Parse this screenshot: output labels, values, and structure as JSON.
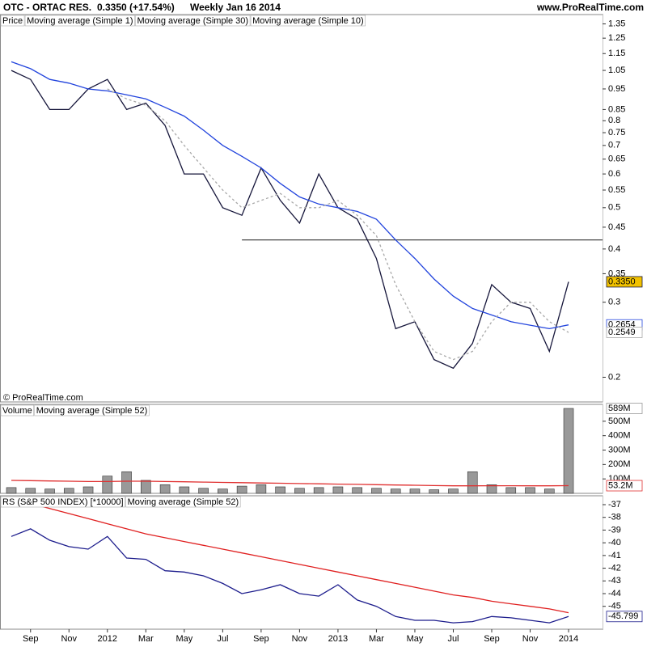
{
  "chart_data": [
    {
      "type": "line",
      "title": "OTC - ORTAC RES.",
      "subtitle": "0.3350 (+17.54%)",
      "period": "Weekly  Jan 16 2014",
      "source": "www.ProRealTime.com",
      "watermark": "© ProRealTime.com",
      "label": "Price",
      "log_scale": true,
      "ylim": [
        0.175,
        1.42
      ],
      "yticks": [
        1.35,
        1.25,
        1.15,
        1.05,
        0.95,
        0.85,
        0.8,
        0.75,
        0.7,
        0.65,
        0.6,
        0.55,
        0.5,
        0.45,
        0.4,
        0.35,
        0.3,
        0.2
      ],
      "hline": 0.42,
      "series": [
        {
          "name": "Moving average (Simple 1)",
          "color": "#15153a",
          "label_fill": "#f2c200",
          "values": [
            1.05,
            1.0,
            0.85,
            0.85,
            0.95,
            1.0,
            0.85,
            0.88,
            0.78,
            0.6,
            0.6,
            0.5,
            0.48,
            0.62,
            0.52,
            0.46,
            0.6,
            0.5,
            0.47,
            0.38,
            0.26,
            0.27,
            0.22,
            0.21,
            0.24,
            0.33,
            0.3,
            0.29,
            0.23,
            0.335
          ],
          "value_labels": [
            null,
            null,
            null,
            null,
            null,
            null,
            null,
            null,
            null,
            null,
            null,
            null,
            null,
            null,
            null,
            null,
            null,
            null,
            null,
            null,
            null,
            null,
            null,
            null,
            null,
            null,
            null,
            null,
            null,
            "0.3350"
          ]
        },
        {
          "name": "Moving average (Simple 30)",
          "color": "#2244dd",
          "values": [
            1.1,
            1.06,
            1.0,
            0.98,
            0.95,
            0.94,
            0.92,
            0.9,
            0.86,
            0.82,
            0.76,
            0.7,
            0.66,
            0.62,
            0.57,
            0.53,
            0.51,
            0.5,
            0.49,
            0.47,
            0.42,
            0.38,
            0.34,
            0.31,
            0.29,
            0.28,
            0.27,
            0.265,
            0.26,
            0.2654
          ],
          "value_labels": [
            null,
            null,
            null,
            null,
            null,
            null,
            null,
            null,
            null,
            null,
            null,
            null,
            null,
            null,
            null,
            null,
            null,
            null,
            null,
            null,
            null,
            null,
            null,
            null,
            null,
            null,
            null,
            null,
            null,
            "0.2654"
          ]
        },
        {
          "name": "Moving average (Simple 10)",
          "color": "#a8a8a8",
          "dashed": true,
          "values": [
            null,
            null,
            null,
            null,
            null,
            0.95,
            0.9,
            0.87,
            0.8,
            0.7,
            0.62,
            0.55,
            0.5,
            0.52,
            0.54,
            0.5,
            0.5,
            0.52,
            0.48,
            0.43,
            0.33,
            0.27,
            0.23,
            0.22,
            0.23,
            0.27,
            0.3,
            0.3,
            0.27,
            0.2549
          ],
          "value_labels": [
            null,
            null,
            null,
            null,
            null,
            null,
            null,
            null,
            null,
            null,
            null,
            null,
            null,
            null,
            null,
            null,
            null,
            null,
            null,
            null,
            null,
            null,
            null,
            null,
            null,
            null,
            null,
            null,
            null,
            "0.2549"
          ]
        }
      ]
    },
    {
      "type": "bar",
      "ylim": [
        0,
        617000000
      ],
      "yticks": [
        {
          "value": 500000000,
          "label": "500M"
        },
        {
          "value": 400000000,
          "label": "400M"
        },
        {
          "value": 300000000,
          "label": "300M"
        },
        {
          "value": 200000000,
          "label": "200M"
        },
        {
          "value": 100000000,
          "label": "100M"
        }
      ],
      "series": [
        {
          "name": "Volume",
          "type": "bar",
          "color": "#999999",
          "values": [
            40000000,
            35000000,
            30000000,
            35000000,
            45000000,
            120000000,
            150000000,
            90000000,
            60000000,
            45000000,
            35000000,
            30000000,
            50000000,
            60000000,
            45000000,
            35000000,
            40000000,
            45000000,
            40000000,
            35000000,
            30000000,
            30000000,
            25000000,
            30000000,
            150000000,
            60000000,
            40000000,
            40000000,
            30000000,
            589000000
          ],
          "value_labels": [
            null,
            null,
            null,
            null,
            null,
            null,
            null,
            null,
            null,
            null,
            null,
            null,
            null,
            null,
            null,
            null,
            null,
            null,
            null,
            null,
            null,
            null,
            null,
            null,
            null,
            null,
            null,
            null,
            null,
            "589M"
          ]
        },
        {
          "name": "Moving average (Simple 52)",
          "color": "#e03030",
          "values": [
            90000000,
            88000000,
            86000000,
            84000000,
            82000000,
            82000000,
            84000000,
            84000000,
            82000000,
            80000000,
            78000000,
            76000000,
            74000000,
            72000000,
            70000000,
            68000000,
            66000000,
            64000000,
            62000000,
            60000000,
            58000000,
            56000000,
            54000000,
            52000000,
            52000000,
            53000000,
            53000000,
            52000000,
            52000000,
            53200000
          ],
          "value_labels": [
            null,
            null,
            null,
            null,
            null,
            null,
            null,
            null,
            null,
            null,
            null,
            null,
            null,
            null,
            null,
            null,
            null,
            null,
            null,
            null,
            null,
            null,
            null,
            null,
            null,
            null,
            null,
            null,
            null,
            "53.2M"
          ]
        }
      ]
    },
    {
      "type": "line",
      "ylim": [
        -46.8,
        -36.3
      ],
      "yticks": [
        -37,
        -38,
        -39,
        -40,
        -41,
        -42,
        -43,
        -44,
        -45
      ],
      "categories": [
        null,
        "Sep",
        null,
        "Nov",
        null,
        "2012",
        null,
        "Mar",
        null,
        "May",
        null,
        "Jul",
        null,
        "Sep",
        null,
        "Nov",
        null,
        "2013",
        null,
        "Mar",
        null,
        "May",
        null,
        "Jul",
        null,
        "Sep",
        null,
        "Nov",
        null,
        "2014"
      ],
      "series": [
        {
          "name": "RS (S&P 500 INDEX) [*10000]",
          "color": "#1c1c8c",
          "values": [
            -39.5,
            -38.9,
            -39.8,
            -40.3,
            -40.5,
            -39.5,
            -41.2,
            -41.3,
            -42.2,
            -42.3,
            -42.6,
            -43.2,
            -44.0,
            -43.7,
            -43.3,
            -44.0,
            -44.2,
            -43.3,
            -44.5,
            -45.0,
            -45.8,
            -46.1,
            -46.1,
            -46.3,
            -46.2,
            -45.8,
            -45.9,
            -46.1,
            -46.3,
            -45.799
          ],
          "value_labels": [
            null,
            null,
            null,
            null,
            null,
            null,
            null,
            null,
            null,
            null,
            null,
            null,
            null,
            null,
            null,
            null,
            null,
            null,
            null,
            null,
            null,
            null,
            null,
            null,
            null,
            null,
            null,
            null,
            null,
            "-45.799"
          ]
        },
        {
          "name": "Moving average (Simple 52)",
          "color": "#e02020",
          "values": [
            -36.5,
            -36.9,
            -37.3,
            -37.7,
            -38.1,
            -38.5,
            -38.9,
            -39.3,
            -39.6,
            -39.9,
            -40.2,
            -40.5,
            -40.8,
            -41.1,
            -41.4,
            -41.7,
            -42.0,
            -42.3,
            -42.6,
            -42.9,
            -43.2,
            -43.5,
            -43.8,
            -44.1,
            -44.3,
            -44.6,
            -44.8,
            -45.0,
            -45.2,
            -45.5
          ]
        }
      ]
    }
  ]
}
